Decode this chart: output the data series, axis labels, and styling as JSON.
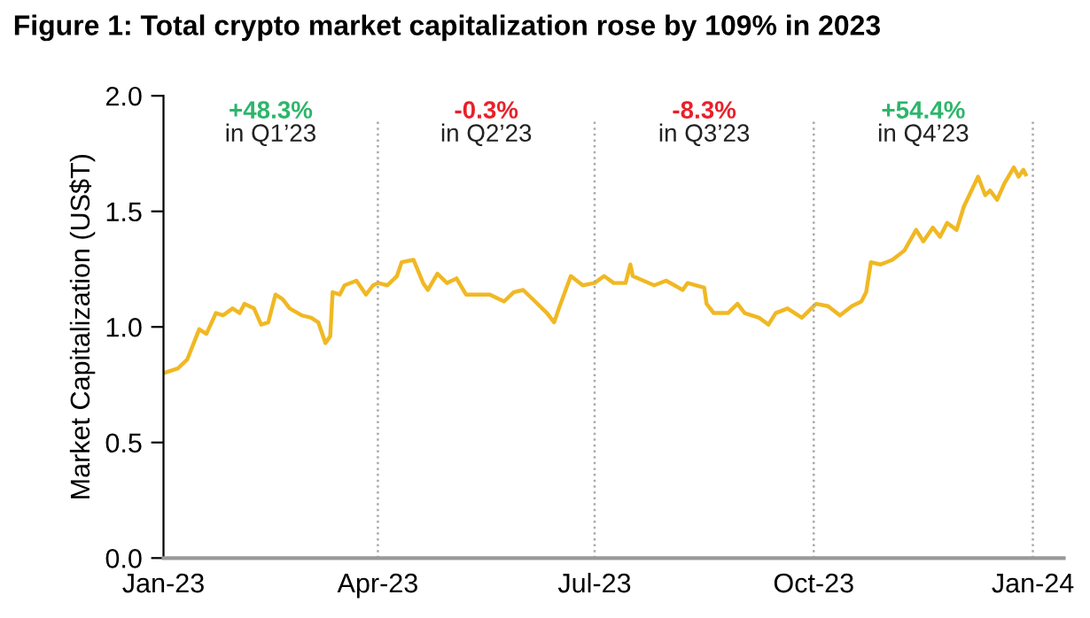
{
  "chart_data": {
    "type": "line",
    "title": "Figure 1: Total crypto market capitalization rose by 109% in 2023",
    "ylabel": "Market Capitalization (US$T)",
    "x": [
      "2023-01-01",
      "2023-01-07",
      "2023-01-11",
      "2023-01-16",
      "2023-01-19",
      "2023-01-23",
      "2023-01-26",
      "2023-01-30",
      "2023-02-02",
      "2023-02-04",
      "2023-02-08",
      "2023-02-11",
      "2023-02-14",
      "2023-02-17",
      "2023-02-20",
      "2023-02-23",
      "2023-02-28",
      "2023-03-04",
      "2023-03-07",
      "2023-03-10",
      "2023-03-12",
      "2023-03-13",
      "2023-03-16",
      "2023-03-18",
      "2023-03-23",
      "2023-03-27",
      "2023-03-30",
      "2023-04-01",
      "2023-04-05",
      "2023-04-09",
      "2023-04-11",
      "2023-04-16",
      "2023-04-20",
      "2023-04-22",
      "2023-04-26",
      "2023-04-30",
      "2023-05-04",
      "2023-05-08",
      "2023-05-13",
      "2023-05-18",
      "2023-05-24",
      "2023-05-28",
      "2023-06-01",
      "2023-06-06",
      "2023-06-11",
      "2023-06-14",
      "2023-06-16",
      "2023-06-21",
      "2023-06-26",
      "2023-07-01",
      "2023-07-05",
      "2023-07-09",
      "2023-07-14",
      "2023-07-16",
      "2023-07-17",
      "2023-07-26",
      "2023-07-31",
      "2023-08-07",
      "2023-08-09",
      "2023-08-16",
      "2023-08-17",
      "2023-08-20",
      "2023-08-26",
      "2023-08-30",
      "2023-09-02",
      "2023-09-08",
      "2023-09-12",
      "2023-09-15",
      "2023-09-20",
      "2023-09-26",
      "2023-10-02",
      "2023-10-07",
      "2023-10-12",
      "2023-10-17",
      "2023-10-21",
      "2023-10-23",
      "2023-10-25",
      "2023-10-29",
      "2023-11-03",
      "2023-11-08",
      "2023-11-13",
      "2023-11-16",
      "2023-11-20",
      "2023-11-23",
      "2023-11-26",
      "2023-11-30",
      "2023-12-03",
      "2023-12-09",
      "2023-12-12",
      "2023-12-14",
      "2023-12-17",
      "2023-12-20",
      "2023-12-24",
      "2023-12-26",
      "2023-12-28",
      "2023-12-29"
    ],
    "series": [
      {
        "color": "#f0b823",
        "values": [
          0.8,
          0.82,
          0.86,
          0.99,
          0.97,
          1.06,
          1.05,
          1.08,
          1.06,
          1.1,
          1.08,
          1.01,
          1.02,
          1.14,
          1.12,
          1.08,
          1.05,
          1.04,
          1.02,
          0.93,
          0.96,
          1.15,
          1.14,
          1.18,
          1.2,
          1.14,
          1.18,
          1.19,
          1.18,
          1.22,
          1.28,
          1.29,
          1.19,
          1.16,
          1.23,
          1.19,
          1.21,
          1.14,
          1.14,
          1.14,
          1.11,
          1.15,
          1.16,
          1.11,
          1.06,
          1.02,
          1.08,
          1.22,
          1.18,
          1.19,
          1.22,
          1.19,
          1.19,
          1.27,
          1.22,
          1.18,
          1.2,
          1.16,
          1.19,
          1.17,
          1.1,
          1.06,
          1.06,
          1.1,
          1.06,
          1.04,
          1.01,
          1.06,
          1.08,
          1.04,
          1.1,
          1.09,
          1.05,
          1.09,
          1.11,
          1.15,
          1.28,
          1.27,
          1.29,
          1.33,
          1.42,
          1.37,
          1.43,
          1.39,
          1.45,
          1.42,
          1.52,
          1.65,
          1.57,
          1.59,
          1.55,
          1.62,
          1.69,
          1.65,
          1.68,
          1.66
        ]
      }
    ],
    "xlim": [
      "2023-01-01",
      "2024-01-14"
    ],
    "xticks": [
      {
        "value": "2023-01-01",
        "label": "Jan-23"
      },
      {
        "value": "2023-04-01",
        "label": "Apr-23"
      },
      {
        "value": "2023-07-01",
        "label": "Jul-23"
      },
      {
        "value": "2023-10-01",
        "label": "Oct-23"
      },
      {
        "value": "2024-01-01",
        "label": "Jan-24"
      }
    ],
    "ylim": [
      0,
      2.0
    ],
    "yticks": [
      {
        "value": 0,
        "label": "0.0"
      },
      {
        "value": 0.5,
        "label": "0.5"
      },
      {
        "value": 1.0,
        "label": "1.0"
      },
      {
        "value": 1.5,
        "label": "1.5"
      },
      {
        "value": 2.0,
        "label": "2.0"
      }
    ],
    "ref_lines": [
      {
        "axis": "x",
        "value": "2023-04-01",
        "color": "#aaaaaa",
        "line_style": "dotted"
      },
      {
        "axis": "x",
        "value": "2023-07-01",
        "color": "#aaaaaa",
        "line_style": "dotted"
      },
      {
        "axis": "x",
        "value": "2023-10-01",
        "color": "#aaaaaa",
        "line_style": "dotted"
      },
      {
        "axis": "x",
        "value": "2024-01-01",
        "color": "#aaaaaa",
        "line_style": "dotted"
      }
    ],
    "annotations": [
      "+48.3%",
      "in Q1’23",
      "-0.3%",
      "in Q2’23",
      "-8.3%",
      "in Q3’23",
      "+54.4%",
      "in Q4’23"
    ],
    "grid": false,
    "marker": "none",
    "line_style": "solid"
  }
}
